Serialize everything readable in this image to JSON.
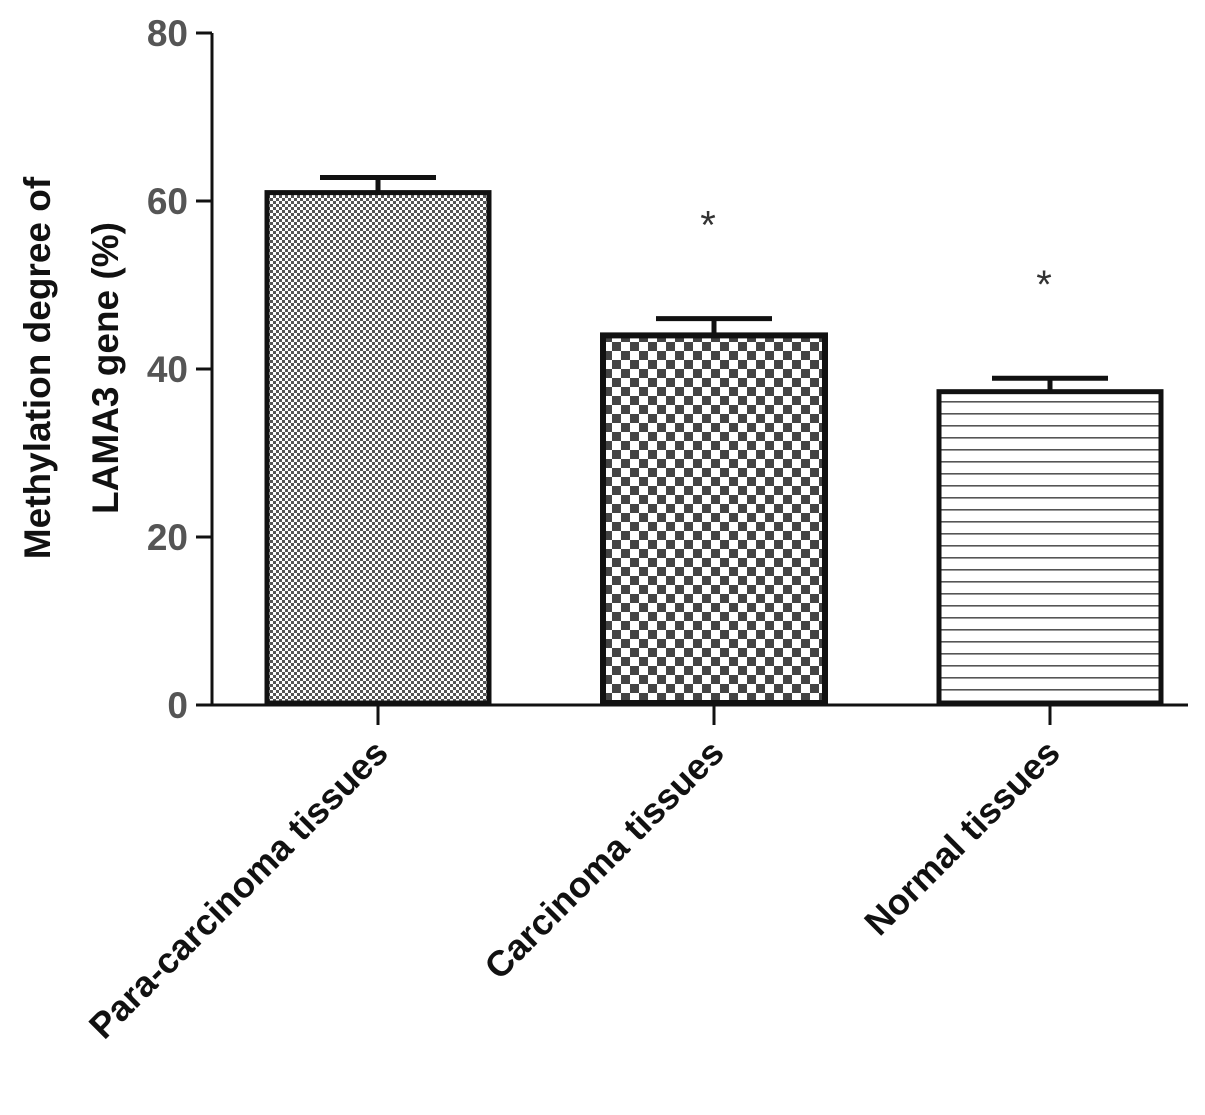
{
  "chart_data": {
    "type": "bar",
    "title": "",
    "xlabel": "",
    "ylabel_lines": [
      "Methylation degree of",
      "LAMA3 gene (%)"
    ],
    "ylim": [
      0,
      80
    ],
    "yticks": [
      0,
      20,
      40,
      60,
      80
    ],
    "grid": false,
    "categories": [
      "Para-carcinoma tissues",
      "Carcinoma tissues",
      "Normal tissues"
    ],
    "values": [
      61,
      44,
      37.3
    ],
    "errors": [
      1.8,
      2,
      1.6
    ],
    "annotations": [
      "",
      "*",
      "*"
    ],
    "patterns": [
      "fine-dots",
      "checkerboard",
      "horizontal-lines"
    ]
  },
  "colors": {
    "bar_outline": "#111111",
    "pattern_fill": "#444444",
    "axis": "#111111",
    "tick_label": "#555555"
  }
}
